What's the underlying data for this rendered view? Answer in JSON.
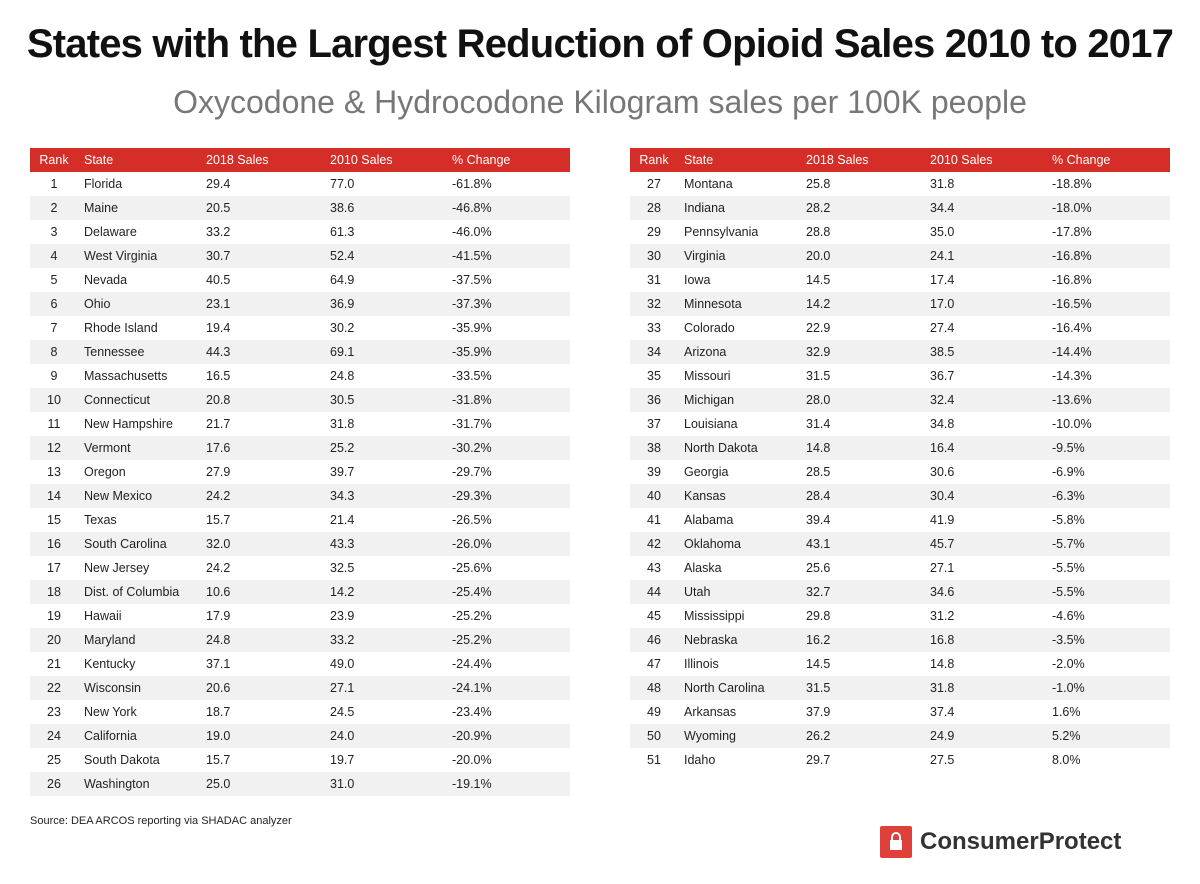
{
  "header": {
    "title": "States with the Largest Reduction of Opioid Sales 2010 to 2017",
    "subtitle": "Oxycodone & Hydrocodone Kilogram sales per 100K people"
  },
  "tables": [
    {
      "columns": [
        "Rank",
        "State",
        "2018 Sales",
        "2010 Sales",
        "% Change"
      ],
      "rows": [
        [
          "1",
          "Florida",
          "29.4",
          "77.0",
          "-61.8%"
        ],
        [
          "2",
          "Maine",
          "20.5",
          "38.6",
          "-46.8%"
        ],
        [
          "3",
          "Delaware",
          "33.2",
          "61.3",
          "-46.0%"
        ],
        [
          "4",
          "West Virginia",
          "30.7",
          "52.4",
          "-41.5%"
        ],
        [
          "5",
          "Nevada",
          "40.5",
          "64.9",
          "-37.5%"
        ],
        [
          "6",
          "Ohio",
          "23.1",
          "36.9",
          "-37.3%"
        ],
        [
          "7",
          "Rhode Island",
          "19.4",
          "30.2",
          "-35.9%"
        ],
        [
          "8",
          "Tennessee",
          "44.3",
          "69.1",
          "-35.9%"
        ],
        [
          "9",
          "Massachusetts",
          "16.5",
          "24.8",
          "-33.5%"
        ],
        [
          "10",
          "Connecticut",
          "20.8",
          "30.5",
          "-31.8%"
        ],
        [
          "11",
          "New Hampshire",
          "21.7",
          "31.8",
          "-31.7%"
        ],
        [
          "12",
          "Vermont",
          "17.6",
          "25.2",
          "-30.2%"
        ],
        [
          "13",
          "Oregon",
          "27.9",
          "39.7",
          "-29.7%"
        ],
        [
          "14",
          "New Mexico",
          "24.2",
          "34.3",
          "-29.3%"
        ],
        [
          "15",
          "Texas",
          "15.7",
          "21.4",
          "-26.5%"
        ],
        [
          "16",
          "South Carolina",
          "32.0",
          "43.3",
          "-26.0%"
        ],
        [
          "17",
          "New Jersey",
          "24.2",
          "32.5",
          "-25.6%"
        ],
        [
          "18",
          "Dist. of Columbia",
          "10.6",
          "14.2",
          "-25.4%"
        ],
        [
          "19",
          "Hawaii",
          "17.9",
          "23.9",
          "-25.2%"
        ],
        [
          "20",
          "Maryland",
          "24.8",
          "33.2",
          "-25.2%"
        ],
        [
          "21",
          "Kentucky",
          "37.1",
          "49.0",
          "-24.4%"
        ],
        [
          "22",
          "Wisconsin",
          "20.6",
          "27.1",
          "-24.1%"
        ],
        [
          "23",
          "New York",
          "18.7",
          "24.5",
          "-23.4%"
        ],
        [
          "24",
          "California",
          "19.0",
          "24.0",
          "-20.9%"
        ],
        [
          "25",
          "South Dakota",
          "15.7",
          "19.7",
          "-20.0%"
        ],
        [
          "26",
          "Washington",
          "25.0",
          "31.0",
          "-19.1%"
        ]
      ]
    },
    {
      "columns": [
        "Rank",
        "State",
        "2018 Sales",
        "2010 Sales",
        "% Change"
      ],
      "rows": [
        [
          "27",
          "Montana",
          "25.8",
          "31.8",
          "-18.8%"
        ],
        [
          "28",
          "Indiana",
          "28.2",
          "34.4",
          "-18.0%"
        ],
        [
          "29",
          "Pennsylvania",
          "28.8",
          "35.0",
          "-17.8%"
        ],
        [
          "30",
          "Virginia",
          "20.0",
          "24.1",
          "-16.8%"
        ],
        [
          "31",
          "Iowa",
          "14.5",
          "17.4",
          "-16.8%"
        ],
        [
          "32",
          "Minnesota",
          "14.2",
          "17.0",
          "-16.5%"
        ],
        [
          "33",
          "Colorado",
          "22.9",
          "27.4",
          "-16.4%"
        ],
        [
          "34",
          "Arizona",
          "32.9",
          "38.5",
          "-14.4%"
        ],
        [
          "35",
          "Missouri",
          "31.5",
          "36.7",
          "-14.3%"
        ],
        [
          "36",
          "Michigan",
          "28.0",
          "32.4",
          "-13.6%"
        ],
        [
          "37",
          "Louisiana",
          "31.4",
          "34.8",
          "-10.0%"
        ],
        [
          "38",
          "North Dakota",
          "14.8",
          "16.4",
          "-9.5%"
        ],
        [
          "39",
          "Georgia",
          "28.5",
          "30.6",
          "-6.9%"
        ],
        [
          "40",
          "Kansas",
          "28.4",
          "30.4",
          "-6.3%"
        ],
        [
          "41",
          "Alabama",
          "39.4",
          "41.9",
          "-5.8%"
        ],
        [
          "42",
          "Oklahoma",
          "43.1",
          "45.7",
          "-5.7%"
        ],
        [
          "43",
          "Alaska",
          "25.6",
          "27.1",
          "-5.5%"
        ],
        [
          "44",
          "Utah",
          "32.7",
          "34.6",
          "-5.5%"
        ],
        [
          "45",
          "Mississippi",
          "29.8",
          "31.2",
          "-4.6%"
        ],
        [
          "46",
          "Nebraska",
          "16.2",
          "16.8",
          "-3.5%"
        ],
        [
          "47",
          "Illinois",
          "14.5",
          "14.8",
          "-2.0%"
        ],
        [
          "48",
          "North Carolina",
          "31.5",
          "31.8",
          "-1.0%"
        ],
        [
          "49",
          "Arkansas",
          "37.9",
          "37.4",
          "1.6%"
        ],
        [
          "50",
          "Wyoming",
          "26.2",
          "24.9",
          "5.2%"
        ],
        [
          "51",
          "Idaho",
          "29.7",
          "27.5",
          "8.0%"
        ]
      ]
    }
  ],
  "footer": {
    "source": "Source: DEA ARCOS reporting via SHADAC analyzer",
    "logo": "ConsumerProtect"
  }
}
